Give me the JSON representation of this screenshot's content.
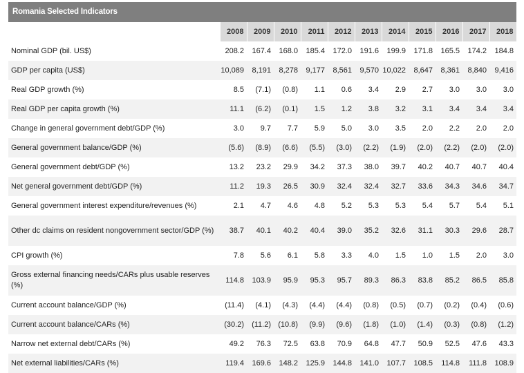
{
  "title": "Romania Selected Indicators",
  "years": [
    "2008",
    "2009",
    "2010",
    "2011",
    "2012",
    "2013",
    "2014",
    "2015",
    "2016",
    "2017",
    "2018"
  ],
  "rows": [
    {
      "label": "Nominal GDP (bil. US$)",
      "values": [
        "208.2",
        "167.4",
        "168.0",
        "185.4",
        "172.0",
        "191.6",
        "199.9",
        "171.8",
        "165.5",
        "174.2",
        "184.8"
      ]
    },
    {
      "label": "GDP per capita (US$)",
      "values": [
        "10,089",
        "8,191",
        "8,278",
        "9,177",
        "8,561",
        "9,570",
        "10,022",
        "8,647",
        "8,361",
        "8,840",
        "9,416"
      ]
    },
    {
      "label": "Real GDP growth (%)",
      "values": [
        "8.5",
        "(7.1)",
        "(0.8)",
        "1.1",
        "0.6",
        "3.4",
        "2.9",
        "2.7",
        "3.0",
        "3.0",
        "3.0"
      ]
    },
    {
      "label": "Real GDP per capita growth (%)",
      "values": [
        "11.1",
        "(6.2)",
        "(0.1)",
        "1.5",
        "1.2",
        "3.8",
        "3.2",
        "3.1",
        "3.4",
        "3.4",
        "3.4"
      ]
    },
    {
      "label": "Change in general government debt/GDP (%)",
      "values": [
        "3.0",
        "9.7",
        "7.7",
        "5.9",
        "5.0",
        "3.0",
        "3.5",
        "2.0",
        "2.2",
        "2.0",
        "2.0"
      ]
    },
    {
      "label": "General government balance/GDP (%)",
      "values": [
        "(5.6)",
        "(8.9)",
        "(6.6)",
        "(5.5)",
        "(3.0)",
        "(2.2)",
        "(1.9)",
        "(2.0)",
        "(2.2)",
        "(2.0)",
        "(2.0)"
      ]
    },
    {
      "label": "General government debt/GDP (%)",
      "values": [
        "13.2",
        "23.2",
        "29.9",
        "34.2",
        "37.3",
        "38.0",
        "39.7",
        "40.2",
        "40.7",
        "40.7",
        "40.4"
      ]
    },
    {
      "label": "Net general government debt/GDP (%)",
      "values": [
        "11.2",
        "19.3",
        "26.5",
        "30.9",
        "32.4",
        "32.4",
        "32.7",
        "33.6",
        "34.3",
        "34.6",
        "34.7"
      ]
    },
    {
      "label": "General government interest expenditure/revenues (%)",
      "values": [
        "2.1",
        "4.7",
        "4.6",
        "4.8",
        "5.2",
        "5.3",
        "5.3",
        "5.4",
        "5.7",
        "5.4",
        "5.1"
      ]
    },
    {
      "label": "Other dc claims on resident nongovernment sector/GDP (%)",
      "values": [
        "38.7",
        "40.1",
        "40.2",
        "40.4",
        "39.0",
        "35.2",
        "32.6",
        "31.1",
        "30.3",
        "29.6",
        "28.7"
      ],
      "tall": true
    },
    {
      "label": "CPI growth (%)",
      "values": [
        "7.8",
        "5.6",
        "6.1",
        "5.8",
        "3.3",
        "4.0",
        "1.5",
        "1.0",
        "1.5",
        "2.0",
        "3.0"
      ]
    },
    {
      "label": "Gross external financing needs/CARs plus usable reserves (%)",
      "values": [
        "114.8",
        "103.9",
        "95.9",
        "95.3",
        "95.7",
        "89.3",
        "86.3",
        "83.8",
        "85.2",
        "86.5",
        "85.8"
      ],
      "tall": true
    },
    {
      "label": "Current account balance/GDP (%)",
      "values": [
        "(11.4)",
        "(4.1)",
        "(4.3)",
        "(4.4)",
        "(4.4)",
        "(0.8)",
        "(0.5)",
        "(0.7)",
        "(0.2)",
        "(0.4)",
        "(0.6)"
      ]
    },
    {
      "label": "Current account balance/CARs (%)",
      "values": [
        "(30.2)",
        "(11.2)",
        "(10.8)",
        "(9.9)",
        "(9.6)",
        "(1.8)",
        "(1.0)",
        "(1.4)",
        "(0.3)",
        "(0.8)",
        "(1.2)"
      ]
    },
    {
      "label": "Narrow net external debt/CARs (%)",
      "values": [
        "49.2",
        "76.3",
        "72.5",
        "63.8",
        "70.9",
        "64.8",
        "47.7",
        "50.9",
        "52.5",
        "47.6",
        "43.3"
      ]
    },
    {
      "label": "Net external liabilities/CARs (%)",
      "values": [
        "119.4",
        "169.6",
        "148.2",
        "125.9",
        "144.8",
        "141.0",
        "107.7",
        "108.5",
        "114.8",
        "111.8",
        "108.9"
      ]
    }
  ]
}
